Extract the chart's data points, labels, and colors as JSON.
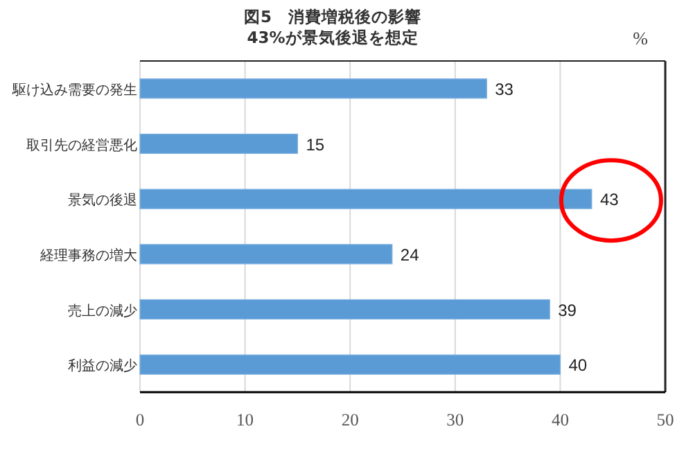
{
  "chart_data": {
    "type": "bar",
    "orientation": "horizontal",
    "title": "図5　消費増税後の影響\n43%が景気後退を想定",
    "xlabel": "%",
    "categories": [
      "駆け込み需要の発生",
      "取引先の経営悪化",
      "景気の後退",
      "経理事務の増大",
      "売上の減少",
      "利益の減少"
    ],
    "values": [
      33,
      15,
      43,
      24,
      39,
      40
    ],
    "color": "#5b9bd5",
    "data_labels": true,
    "xlim": [
      0,
      50
    ],
    "xticks": [
      0,
      10,
      20,
      30,
      40,
      50
    ],
    "grid": "x"
  }
}
